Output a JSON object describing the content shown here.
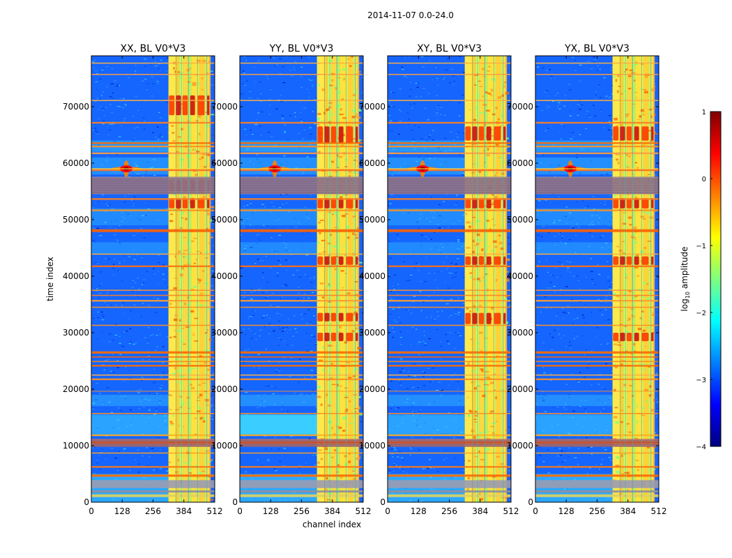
{
  "figure": {
    "suptitle": "2014-11-07 0.0-24.0"
  },
  "chart_data": {
    "type": "heatmap",
    "xlabel": "channel index",
    "ylabel": "time index",
    "xlim": [
      0,
      512
    ],
    "ylim": [
      0,
      79000
    ],
    "xticks": [
      0,
      128,
      256,
      384,
      512
    ],
    "yticks": [
      0,
      10000,
      20000,
      30000,
      40000,
      50000,
      60000,
      70000
    ],
    "panels": [
      {
        "title": "XX, BL V0*V3",
        "pol": "XX"
      },
      {
        "title": "YY, BL V0*V3",
        "pol": "YY"
      },
      {
        "title": "XY, BL V0*V3",
        "pol": "XY"
      },
      {
        "title": "YX, BL V0*V3",
        "pol": "YX"
      }
    ],
    "colorbar": {
      "label": "log",
      "label_sub": "10",
      "label_rest": " amplitude",
      "range": [
        -4,
        1
      ],
      "ticks": [
        1,
        0,
        -1,
        -2,
        -3,
        -4
      ],
      "tick_labels": [
        "1",
        "0",
        "−1",
        "−2",
        "−3",
        "−4"
      ],
      "stops": [
        "#00007f",
        "#0000ff",
        "#007fff",
        "#00ffff",
        "#7fff7f",
        "#ffff00",
        "#ff7f00",
        "#ff0000",
        "#7f0000"
      ]
    }
  }
}
